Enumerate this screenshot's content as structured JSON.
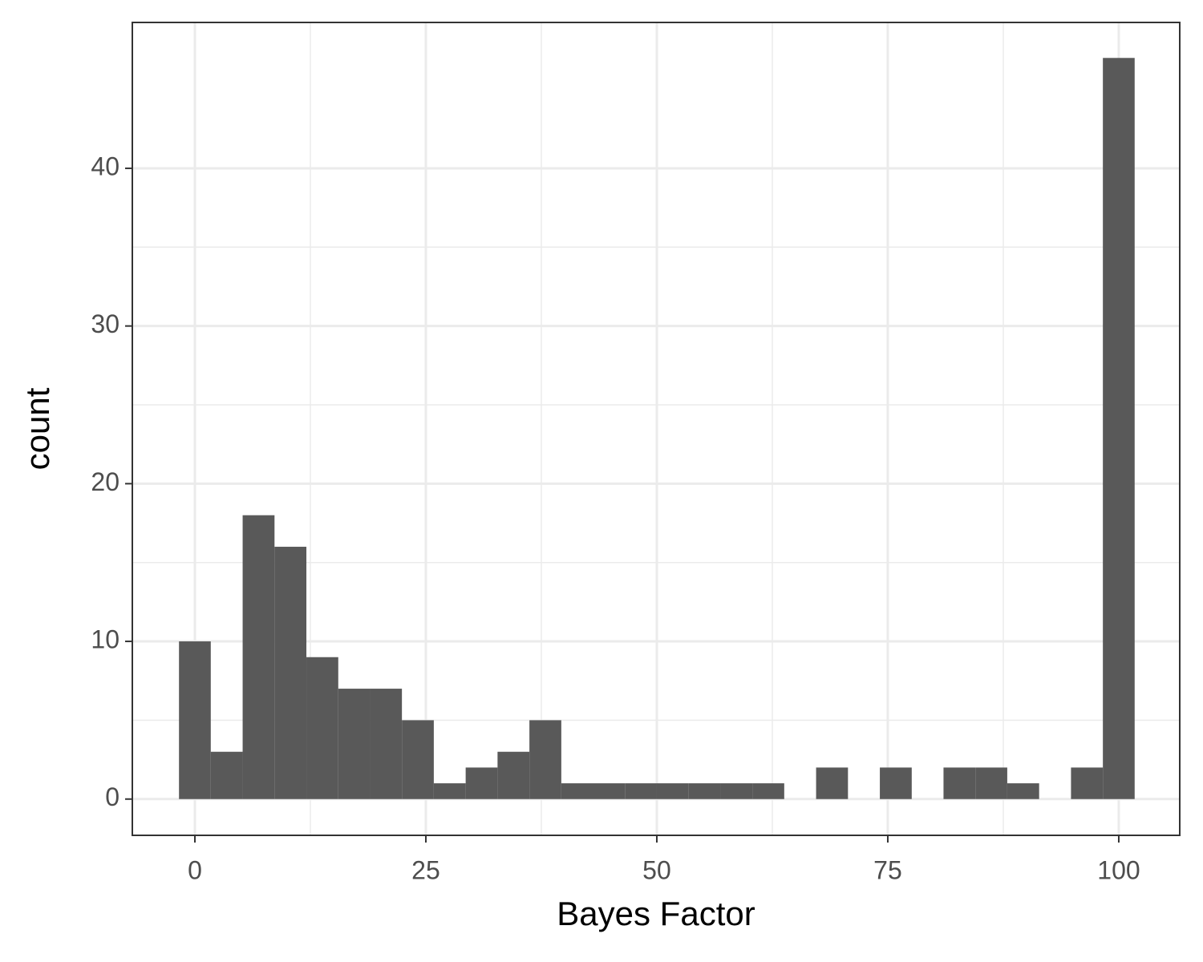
{
  "chart_data": {
    "type": "histogram",
    "xlabel": "Bayes Factor",
    "ylabel": "count",
    "bins": [
      -1.72,
      1.72,
      5.17,
      8.62,
      12.07,
      15.52,
      18.97,
      22.41,
      25.86,
      29.31,
      32.76,
      36.21,
      39.66,
      43.1,
      46.55,
      50.0,
      53.45,
      56.9,
      60.34,
      63.79,
      67.24,
      70.69,
      74.14,
      77.59,
      81.03,
      84.48,
      87.93,
      91.38,
      94.83,
      98.28,
      101.72
    ],
    "counts": [
      10,
      3,
      18,
      16,
      9,
      7,
      7,
      5,
      1,
      2,
      3,
      5,
      1,
      1,
      1,
      1,
      1,
      1,
      1,
      0,
      2,
      0,
      2,
      0,
      2,
      2,
      1,
      0,
      2,
      47
    ],
    "color": "#595959",
    "xlim": [
      -6.77,
      106.6
    ],
    "ylim": [
      -2.3,
      49.25
    ],
    "xticks": [
      0,
      25,
      50,
      75,
      100
    ],
    "yticks": [
      0,
      10,
      20,
      30,
      40
    ],
    "grid": true
  }
}
